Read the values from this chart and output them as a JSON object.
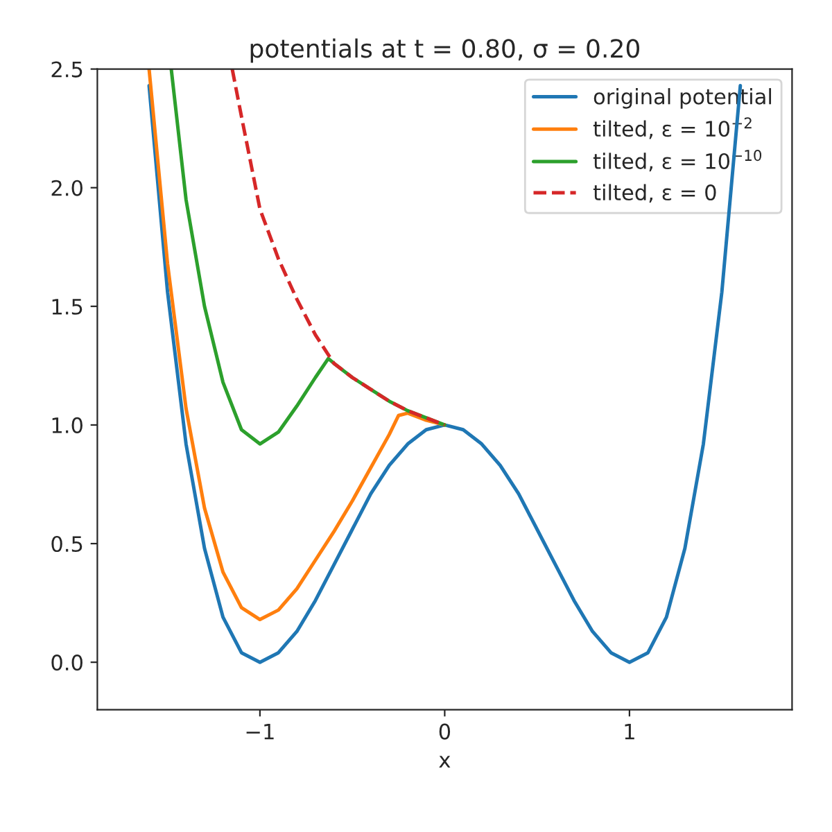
{
  "chart_data": {
    "type": "line",
    "title": "potentials at t = 0.80, σ = 0.20",
    "xlabel": "x",
    "xlim": [
      -1.88,
      1.88
    ],
    "ylim": [
      -0.2,
      2.5
    ],
    "xticks": [
      {
        "value": -1,
        "label": "−1"
      },
      0,
      1
    ],
    "yticks": [
      {
        "value": 0,
        "label": "0.0"
      },
      0.5,
      {
        "value": 1,
        "label": "1.0"
      },
      1.5,
      {
        "value": 2,
        "label": "2.0"
      },
      2.5
    ],
    "grid": false,
    "legend": "top right",
    "marker": "none",
    "series": [
      {
        "name": "original potential",
        "color": "#1f77b4",
        "line_style": "solid",
        "x": [
          -1.6,
          -1.5,
          -1.4,
          -1.3,
          -1.2,
          -1.1,
          -1.0,
          -0.9,
          -0.8,
          -0.7,
          -0.6,
          -0.5,
          -0.4,
          -0.3,
          -0.2,
          -0.1,
          0,
          0.1,
          0.2,
          0.3,
          0.4,
          0.5,
          0.6,
          0.7,
          0.8,
          0.9,
          1.0,
          1.1,
          1.2,
          1.3,
          1.4,
          1.5,
          1.6
        ],
        "values": [
          2.43,
          1.56,
          0.92,
          0.48,
          0.19,
          0.04,
          0,
          0.04,
          0.13,
          0.26,
          0.41,
          0.56,
          0.71,
          0.83,
          0.92,
          0.98,
          1.0,
          0.98,
          0.92,
          0.83,
          0.71,
          0.56,
          0.41,
          0.26,
          0.13,
          0.04,
          0,
          0.04,
          0.19,
          0.48,
          0.92,
          1.56,
          2.43
        ]
      },
      {
        "name": "tilted, ε = 10$^{−2}$",
        "color": "#ff7f0e",
        "line_style": "solid",
        "x": [
          -1.6,
          -1.5,
          -1.4,
          -1.3,
          -1.2,
          -1.1,
          -1.0,
          -0.9,
          -0.8,
          -0.7,
          -0.6,
          -0.5,
          -0.4,
          -0.3,
          -0.25,
          -0.2,
          -0.1,
          0
        ],
        "values": [
          2.5,
          1.68,
          1.07,
          0.65,
          0.38,
          0.23,
          0.18,
          0.22,
          0.31,
          0.43,
          0.55,
          0.68,
          0.82,
          0.96,
          1.04,
          1.05,
          1.02,
          1.0
        ]
      },
      {
        "name": "tilted, ε = 10$^{−10}$",
        "color": "#2ca02c",
        "line_style": "solid",
        "x": [
          -1.48,
          -1.4,
          -1.3,
          -1.2,
          -1.1,
          -1.0,
          -0.9,
          -0.8,
          -0.7,
          -0.63,
          -0.6,
          -0.5,
          -0.4,
          -0.3,
          -0.2,
          -0.1,
          0
        ],
        "values": [
          2.5,
          1.95,
          1.5,
          1.18,
          0.98,
          0.92,
          0.97,
          1.08,
          1.2,
          1.28,
          1.26,
          1.2,
          1.15,
          1.1,
          1.06,
          1.03,
          1.0
        ]
      },
      {
        "name": "tilted, ε = 0",
        "color": "#d62728",
        "line_style": "dashed",
        "x": [
          -1.15,
          -1.1,
          -1.0,
          -0.9,
          -0.8,
          -0.7,
          -0.6,
          -0.5,
          -0.4,
          -0.3,
          -0.2,
          -0.1,
          0
        ],
        "values": [
          2.5,
          2.3,
          1.91,
          1.7,
          1.53,
          1.38,
          1.26,
          1.2,
          1.15,
          1.1,
          1.06,
          1.03,
          1.0
        ]
      }
    ]
  }
}
